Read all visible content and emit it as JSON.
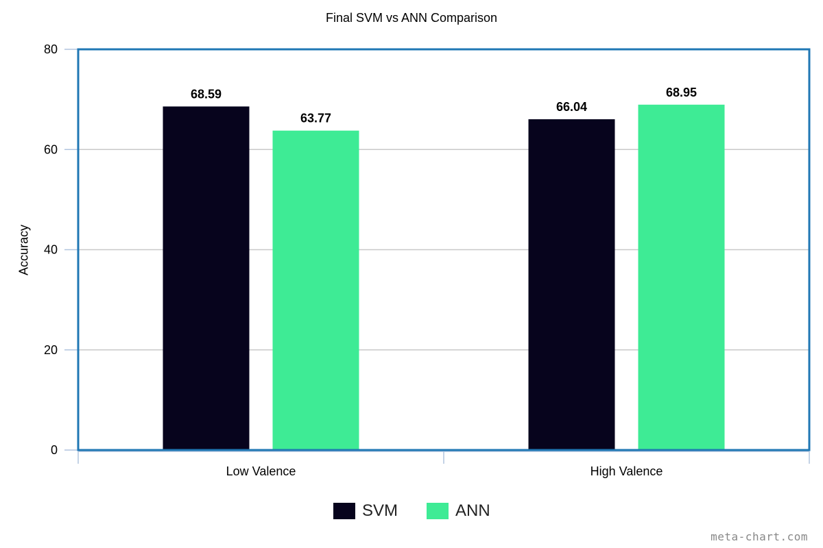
{
  "chart_data": {
    "type": "bar",
    "title": "Final SVM vs ANN Comparison",
    "xlabel": "",
    "ylabel": "Accuracy",
    "categories": [
      "Low Valence",
      "High Valence"
    ],
    "series": [
      {
        "name": "SVM",
        "values": [
          68.59,
          66.04
        ],
        "labels": [
          "68.59",
          "66.04"
        ],
        "color": "#07041d"
      },
      {
        "name": "ANN",
        "values": [
          63.77,
          68.95
        ],
        "labels": [
          "63.77",
          "68.95"
        ],
        "color": "#3eeb95"
      }
    ],
    "ylim": [
      0,
      80
    ],
    "y_ticks": [
      "0",
      "20",
      "40",
      "60",
      "80"
    ],
    "grid": true,
    "legend_position": "bottom-center",
    "plot_border_color": "#1f77b4",
    "watermark": "meta-chart.com"
  }
}
